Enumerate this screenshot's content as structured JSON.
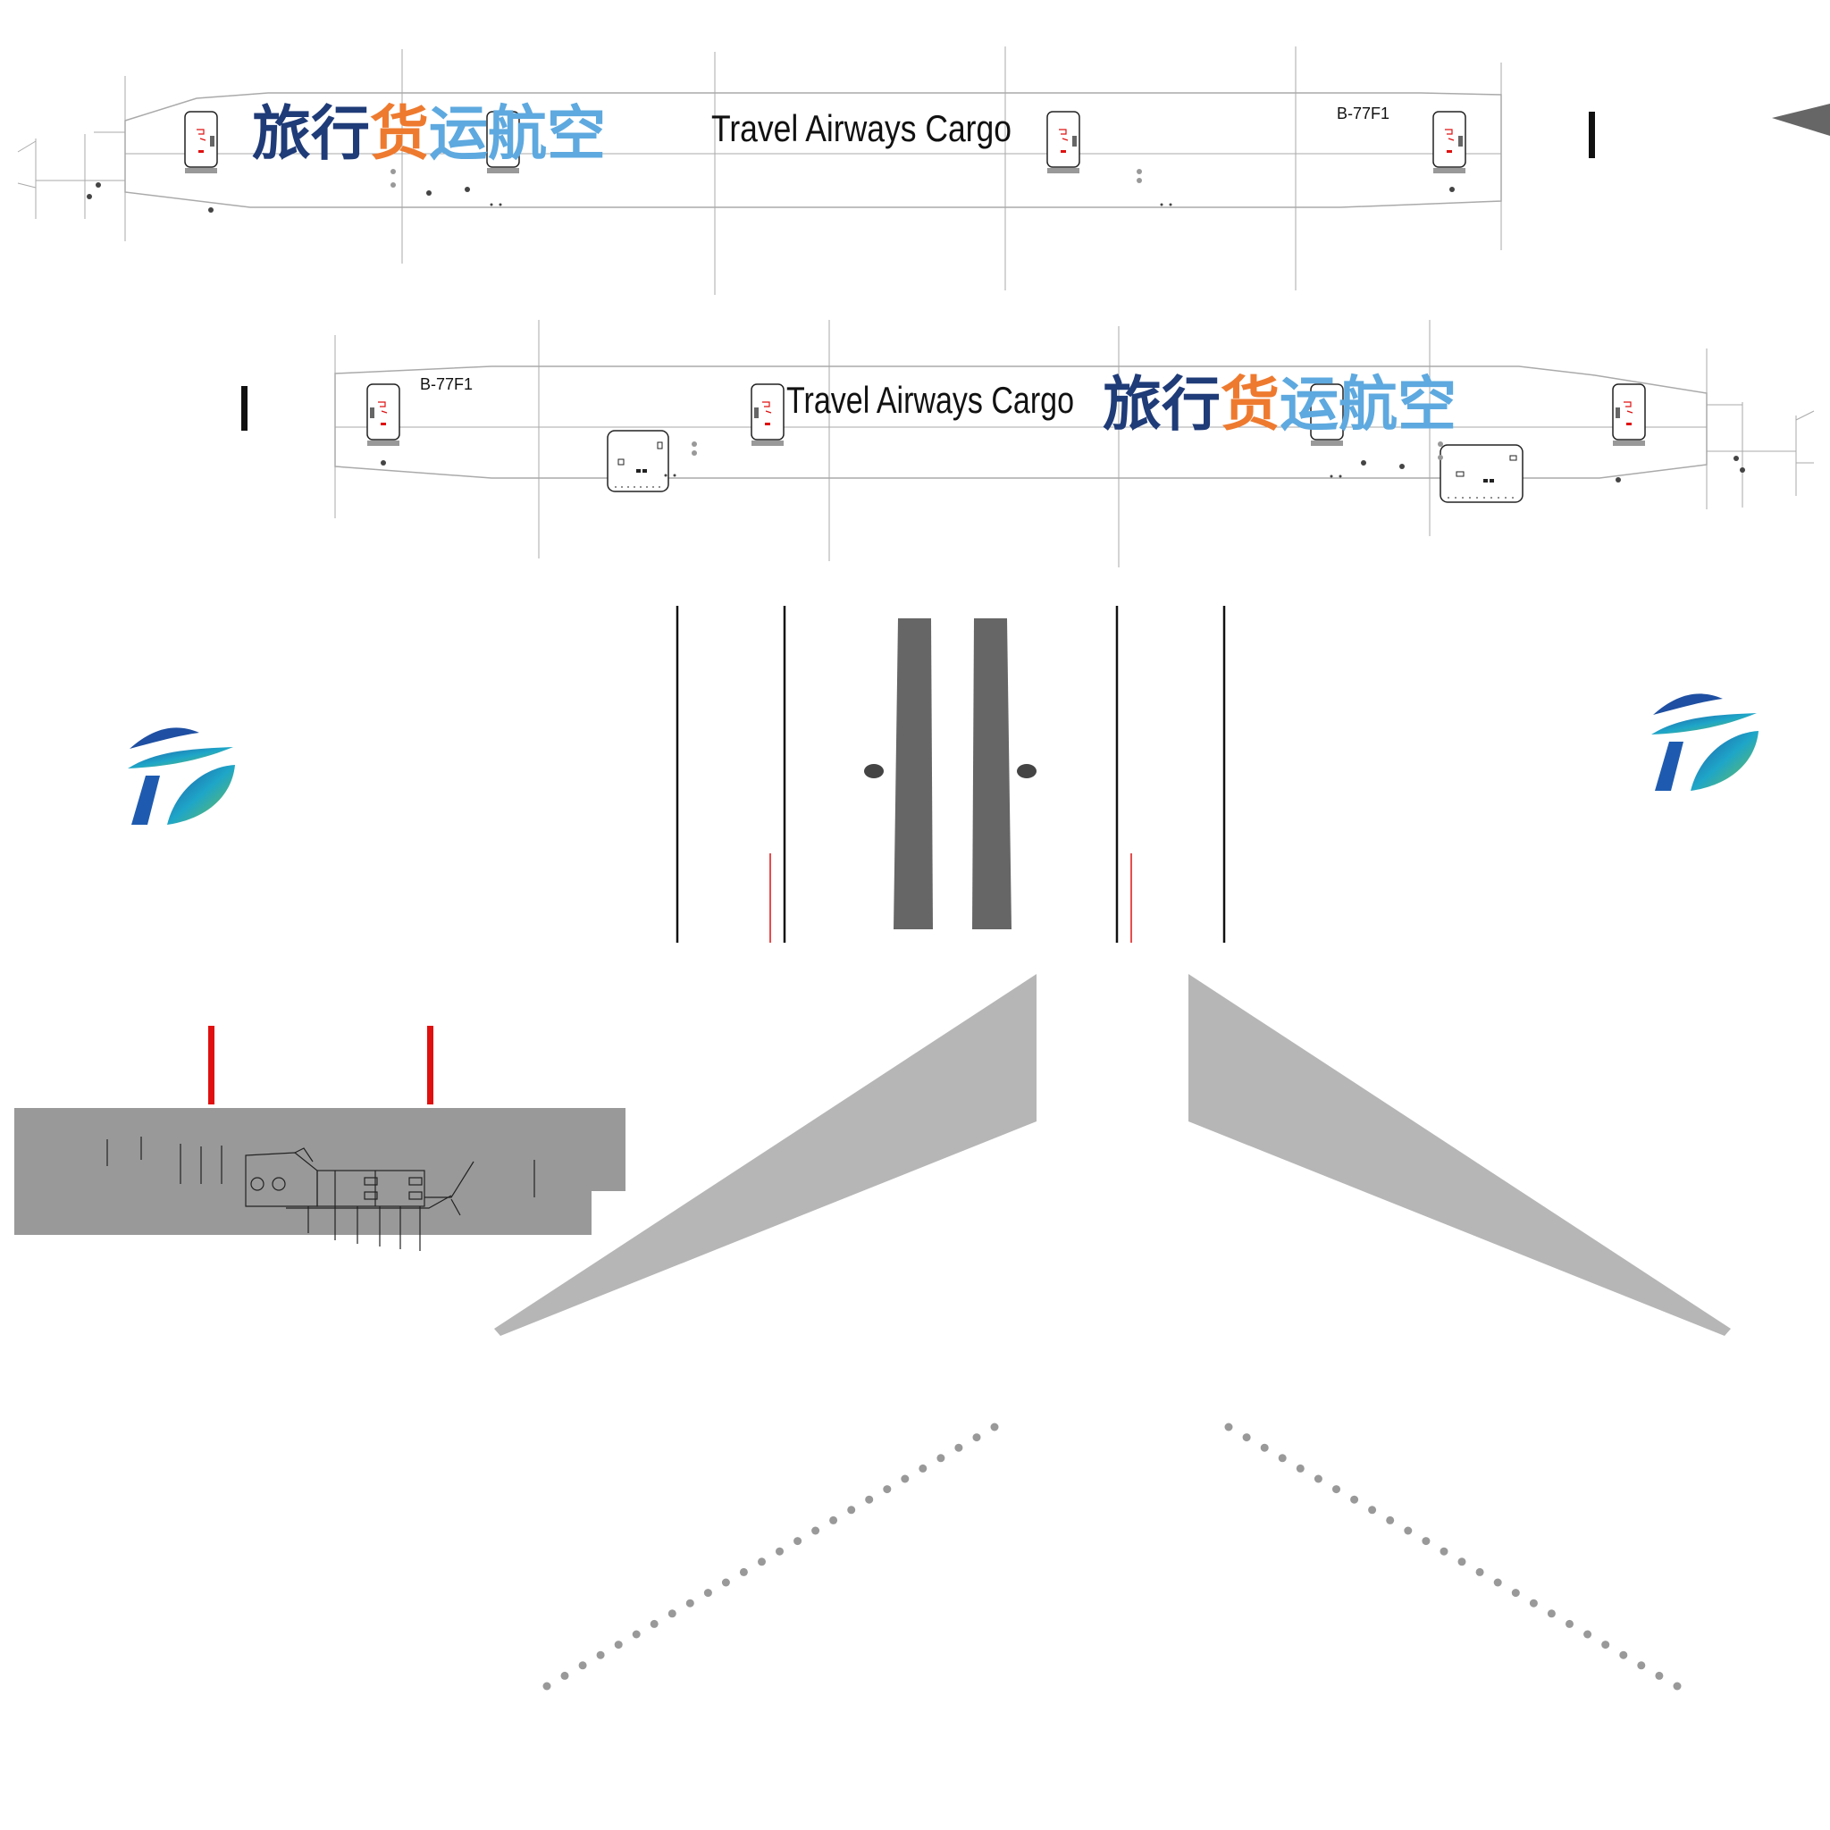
{
  "fuselage_left": {
    "name_cn": [
      "旅行",
      "货",
      "运航空"
    ],
    "name_en": "Travel Airways Cargo",
    "registration": "B-77F1"
  },
  "fuselage_right": {
    "name_cn": [
      "旅行",
      "货",
      "运航空"
    ],
    "name_en": "Travel Airways Cargo",
    "registration": "B-77F1"
  },
  "colors": {
    "cn_dark_blue": "#1f3b78",
    "cn_orange": "#ee7a2f",
    "cn_light_blue": "#5ea9df",
    "panel_line": "#aaaaaa",
    "engine_gray": "#666666",
    "wing_gray": "#b6b6b6",
    "tail_gray": "#999999",
    "red": "#e01010"
  },
  "icons": [
    "airline-logo-icon",
    "door-icon",
    "cargo-door-icon"
  ]
}
